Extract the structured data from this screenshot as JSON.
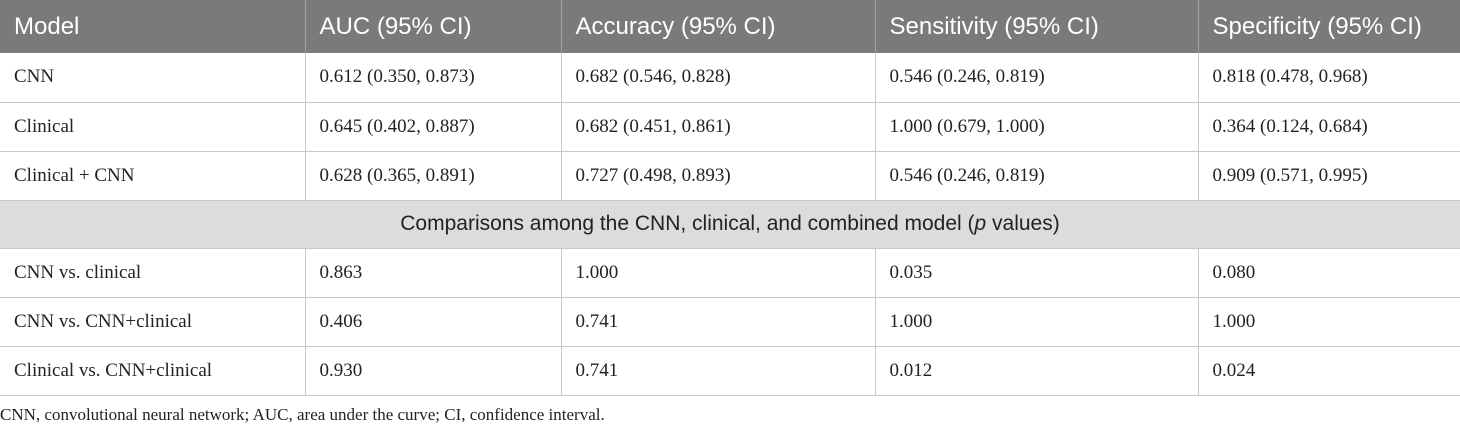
{
  "table": {
    "headers": [
      "Model",
      "AUC (95% CI)",
      "Accuracy (95% CI)",
      "Sensitivity (95% CI)",
      "Specificity (95% CI)"
    ],
    "performance_rows": [
      [
        "CNN",
        "0.612 (0.350, 0.873)",
        "0.682 (0.546, 0.828)",
        "0.546 (0.246, 0.819)",
        "0.818 (0.478, 0.968)"
      ],
      [
        "Clinical",
        "0.645 (0.402, 0.887)",
        "0.682 (0.451, 0.861)",
        "1.000 (0.679, 1.000)",
        "0.364 (0.124, 0.684)"
      ],
      [
        "Clinical + CNN",
        "0.628 (0.365, 0.891)",
        "0.727 (0.498, 0.893)",
        "0.546 (0.246, 0.819)",
        "0.909 (0.571, 0.995)"
      ]
    ],
    "section": {
      "before": "Comparisons among the CNN, clinical, and combined model (",
      "italic": "p",
      "after": " values)"
    },
    "comparison_rows": [
      [
        "CNN vs. clinical",
        "0.863",
        "1.000",
        "0.035",
        "0.080"
      ],
      [
        "CNN vs. CNN+clinical",
        "0.406",
        "0.741",
        "1.000",
        "1.000"
      ],
      [
        "Clinical vs. CNN+clinical",
        "0.930",
        "0.741",
        "0.012",
        "0.024"
      ]
    ]
  },
  "footnote": "CNN, convolutional neural network; AUC, area under the curve; CI, confidence interval.",
  "colors": {
    "header_bg": "#7a7a7a",
    "header_text": "#ffffff",
    "section_bg": "#dcdcdc",
    "grid_line": "#c8c8c8"
  }
}
